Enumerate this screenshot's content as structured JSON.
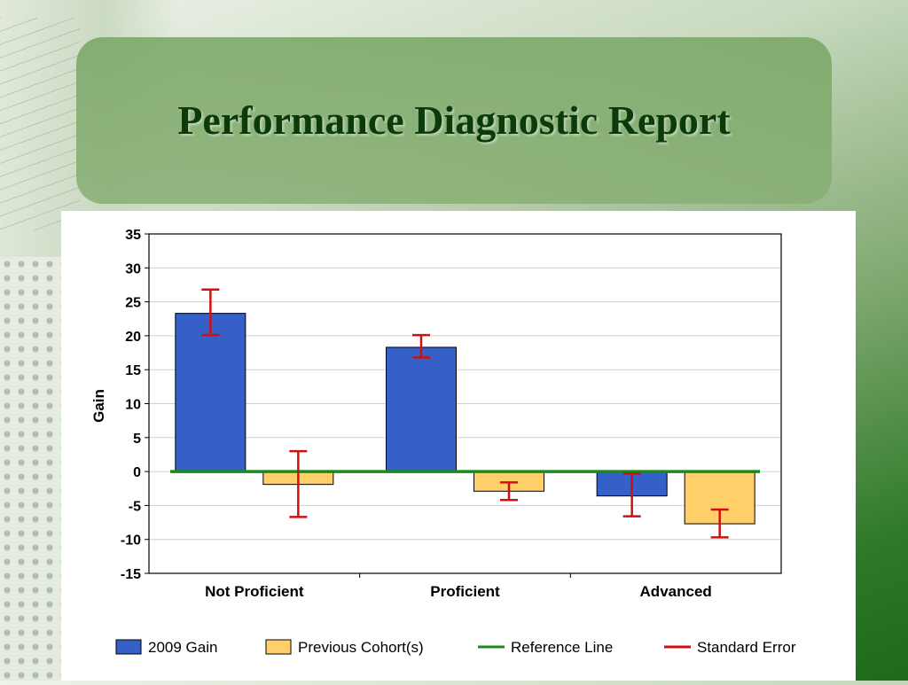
{
  "slide": {
    "title": "Performance Diagnostic Report"
  },
  "colors": {
    "gain_2009": "#3560c8",
    "previous_cohorts": "#ffcf6a",
    "reference_line": "#1a8a1a",
    "standard_error": "#d01010"
  },
  "chart_data": {
    "type": "bar",
    "title": "",
    "xlabel": "",
    "ylabel": "Gain",
    "ylim": [
      -15,
      35
    ],
    "yticks": [
      35,
      30,
      25,
      20,
      15,
      10,
      5,
      0,
      -5,
      -10,
      -15
    ],
    "grid": true,
    "categories": [
      "Not Proficient",
      "Proficient",
      "Advanced"
    ],
    "series": [
      {
        "name": "2009 Gain",
        "values": [
          23.3,
          18.3,
          -3.6
        ],
        "error_low": [
          20.1,
          16.8,
          -6.6
        ],
        "error_high": [
          26.8,
          20.1,
          -0.3
        ]
      },
      {
        "name": "Previous Cohort(s)",
        "values": [
          -1.9,
          -2.9,
          -7.7
        ],
        "error_low": [
          -6.7,
          -4.2,
          -9.7
        ],
        "error_high": [
          3.0,
          -1.6,
          -5.6
        ]
      }
    ],
    "reference_line": {
      "name": "Reference Line",
      "value": 0
    },
    "error_bar_label": "Standard Error",
    "legend": [
      "2009 Gain",
      "Previous Cohort(s)",
      "Reference Line",
      "Standard Error"
    ],
    "legend_position": "bottom"
  }
}
